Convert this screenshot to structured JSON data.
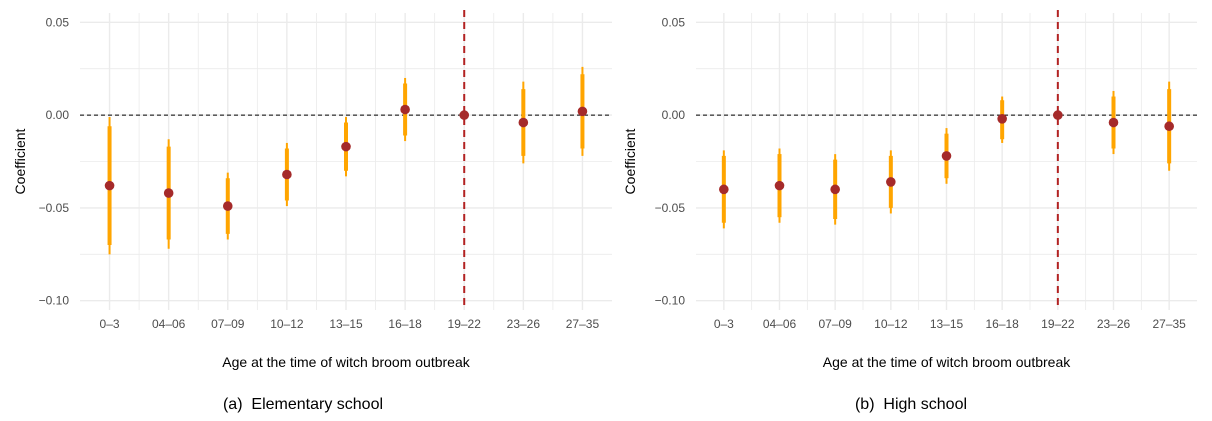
{
  "style": {
    "grid_color": "#ebebeb",
    "ci_color": "#FFA500",
    "point_color": "#A52A2A",
    "reference_line_color": "#B22222",
    "zero_line_color": "#000000"
  },
  "chart_data": [
    {
      "type": "scatter",
      "subtype": "coefficient-plot-with-confidence-intervals",
      "caption": "(a)  Elementary school",
      "xlabel": "Age at the time of witch broom outbreak",
      "ylabel": "Coefficient",
      "categories": [
        "0–3",
        "04–06",
        "07–09",
        "10–12",
        "13–15",
        "16–18",
        "19–22",
        "23–26",
        "27–35"
      ],
      "ylim": [
        -0.105,
        0.055
      ],
      "yticks": [
        0.05,
        0.0,
        -0.05,
        -0.1
      ],
      "ytick_labels": [
        "0.05",
        "0.00",
        "−0.05",
        "−0.10"
      ],
      "grid": true,
      "horizontal_reference": 0.0,
      "vertical_reference_category": "19–22",
      "series": [
        {
          "coefficients": [
            -0.038,
            -0.042,
            -0.049,
            -0.032,
            -0.017,
            0.003,
            0.0,
            -0.004,
            0.002
          ],
          "ci95_low": [
            -0.075,
            -0.072,
            -0.067,
            -0.049,
            -0.033,
            -0.014,
            0.0,
            -0.026,
            -0.022
          ],
          "ci95_high": [
            -0.001,
            -0.013,
            -0.031,
            -0.015,
            -0.001,
            0.02,
            0.0,
            0.018,
            0.026
          ],
          "ci90_low": [
            -0.07,
            -0.067,
            -0.064,
            -0.046,
            -0.03,
            -0.011,
            0.0,
            -0.022,
            -0.018
          ],
          "ci90_high": [
            -0.006,
            -0.017,
            -0.034,
            -0.018,
            -0.004,
            0.017,
            0.0,
            0.014,
            0.022
          ]
        }
      ]
    },
    {
      "type": "scatter",
      "subtype": "coefficient-plot-with-confidence-intervals",
      "caption": "(b)  High school",
      "xlabel": "Age at the time of witch broom outbreak",
      "ylabel": "Coefficient",
      "categories": [
        "0–3",
        "04–06",
        "07–09",
        "10–12",
        "13–15",
        "16–18",
        "19–22",
        "23–26",
        "27–35"
      ],
      "ylim": [
        -0.105,
        0.055
      ],
      "yticks": [
        0.05,
        0.0,
        -0.05,
        -0.1
      ],
      "ytick_labels": [
        "0.05",
        "0.00",
        "−0.05",
        "−0.10"
      ],
      "grid": true,
      "horizontal_reference": 0.0,
      "vertical_reference_category": "19–22",
      "series": [
        {
          "coefficients": [
            -0.04,
            -0.038,
            -0.04,
            -0.036,
            -0.022,
            -0.002,
            0.0,
            -0.004,
            -0.006
          ],
          "ci95_low": [
            -0.061,
            -0.058,
            -0.059,
            -0.053,
            -0.037,
            -0.015,
            0.0,
            -0.021,
            -0.03
          ],
          "ci95_high": [
            -0.019,
            -0.018,
            -0.021,
            -0.019,
            -0.007,
            0.01,
            0.0,
            0.013,
            0.018
          ],
          "ci90_low": [
            -0.058,
            -0.055,
            -0.056,
            -0.05,
            -0.034,
            -0.013,
            0.0,
            -0.018,
            -0.026
          ],
          "ci90_high": [
            -0.022,
            -0.021,
            -0.024,
            -0.022,
            -0.01,
            0.008,
            0.0,
            0.01,
            0.014
          ]
        }
      ]
    }
  ]
}
